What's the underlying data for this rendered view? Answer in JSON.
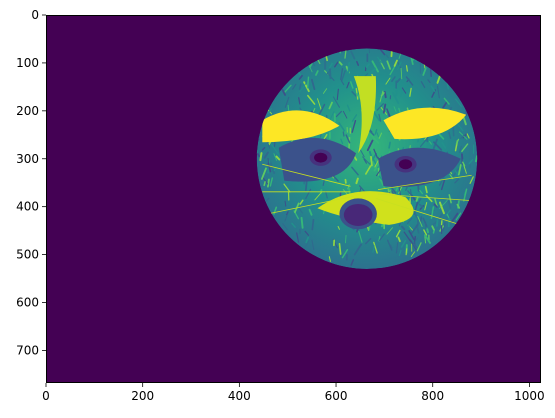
{
  "chart_data": {
    "type": "heatmap",
    "title": "",
    "xlabel": "",
    "ylabel": "",
    "xlim": [
      0,
      1024
    ],
    "ylim": [
      768,
      0
    ],
    "x_ticks": [
      0,
      200,
      400,
      600,
      800,
      1000
    ],
    "y_ticks": [
      0,
      100,
      200,
      300,
      400,
      500,
      600,
      700
    ],
    "x_tick_labels": [
      "0",
      "200",
      "400",
      "600",
      "800",
      "1000"
    ],
    "y_tick_labels": [
      "0",
      "100",
      "200",
      "300",
      "400",
      "500",
      "600",
      "700"
    ],
    "image": {
      "description": "grayscale raccoon face rendered with viridis colormap, masked to a circle",
      "colormap": "viridis",
      "background_value": "min",
      "mask": {
        "shape": "circle",
        "center": [
          664,
          300
        ],
        "radius": 228
      }
    },
    "colors": {
      "background": "#440154",
      "dark": "#3b528b",
      "mid": "#21918c",
      "light": "#5ec962",
      "bright": "#fde725"
    }
  }
}
